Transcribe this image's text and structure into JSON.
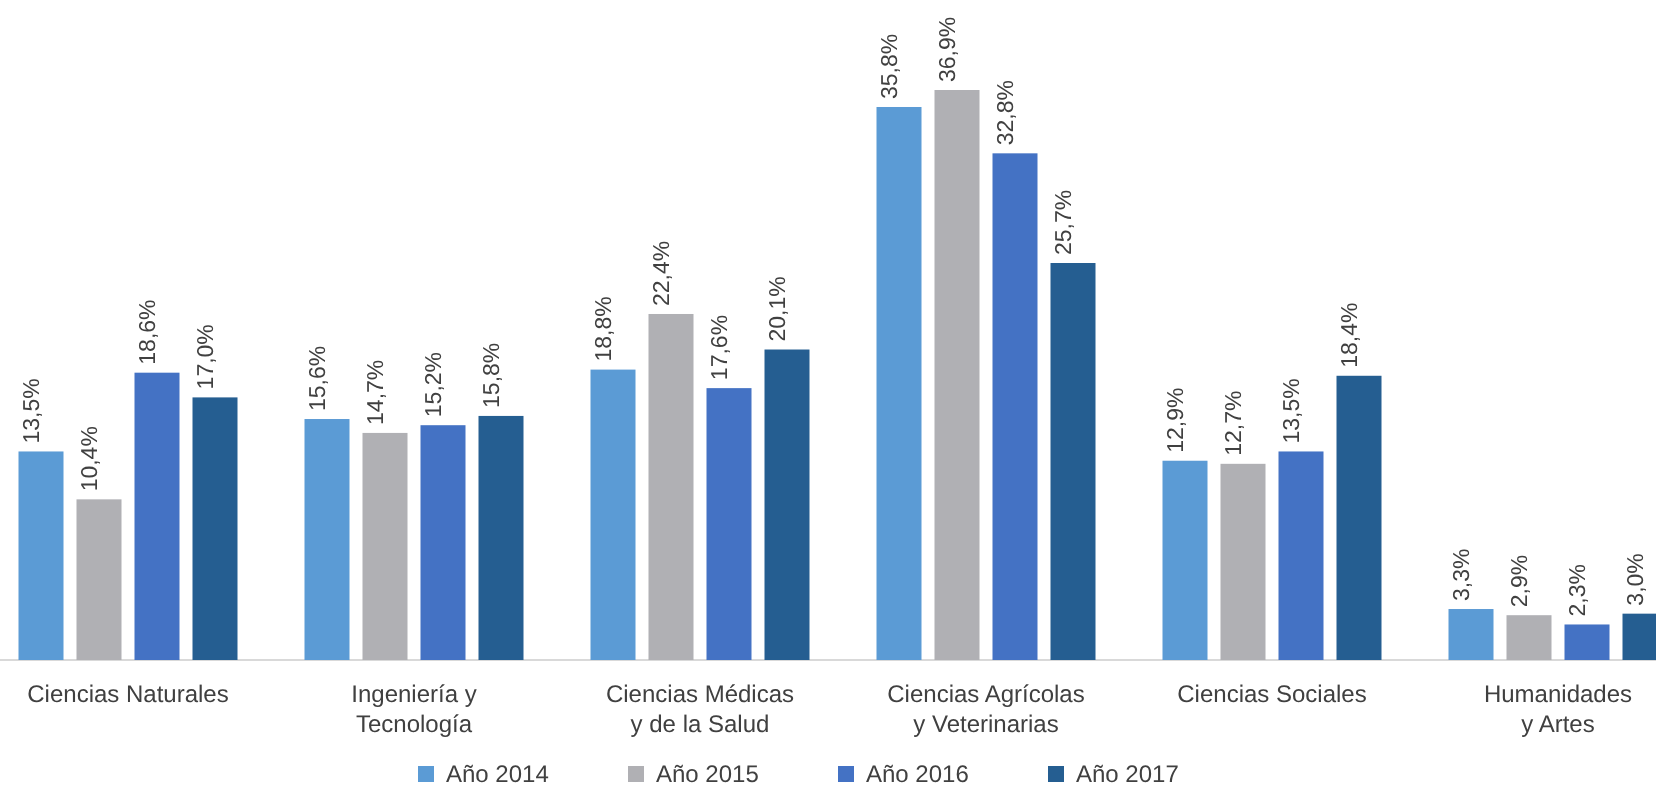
{
  "chart_data": {
    "type": "bar",
    "categories": [
      "Ciencias Naturales",
      "Ingeniería y\nTecnología",
      "Ciencias Médicas\ny de la Salud",
      "Ciencias Agrícolas\ny Veterinarias",
      "Ciencias Sociales",
      "Humanidades\ny Artes"
    ],
    "series": [
      {
        "name": "Año 2014",
        "color": "#5b9bd5",
        "values": [
          13.5,
          15.6,
          18.8,
          35.8,
          12.9,
          3.3
        ],
        "value_labels": [
          "13,5%",
          "15,6%",
          "18,8%",
          "35,8%",
          "12,9%",
          "3,3%"
        ]
      },
      {
        "name": "Año 2015",
        "color": "#b0b0b4",
        "values": [
          10.4,
          14.7,
          22.4,
          36.9,
          12.7,
          2.9
        ],
        "value_labels": [
          "10,4%",
          "14,7%",
          "22,4%",
          "36,9%",
          "12,7%",
          "2,9%"
        ]
      },
      {
        "name": "Año 2016",
        "color": "#4472c4",
        "values": [
          18.6,
          15.2,
          17.6,
          32.8,
          13.5,
          2.3
        ],
        "value_labels": [
          "18,6%",
          "15,2%",
          "17,6%",
          "32,8%",
          "13,5%",
          "2,3%"
        ]
      },
      {
        "name": "Año 2017",
        "color": "#255e91",
        "values": [
          17.0,
          15.8,
          20.1,
          25.7,
          18.4,
          3.0
        ],
        "value_labels": [
          "17,0%",
          "15,8%",
          "20,1%",
          "25,7%",
          "18,4%",
          "3,0%"
        ]
      }
    ],
    "legend": "bottom"
  }
}
